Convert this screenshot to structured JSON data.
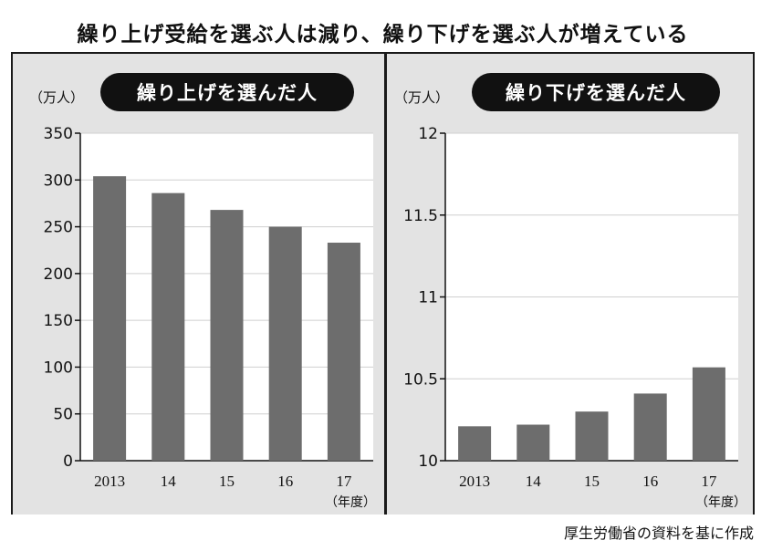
{
  "title": "繰り上げ受給を選ぶ人は減り、繰り下げを選ぶ人が増えている",
  "source": "厚生労働省の資料を基に作成",
  "colors": {
    "bar": "#6d6d6d",
    "panel_bg": "#e3e3e3",
    "plot_bg": "#ffffff",
    "grid": "#cfcfcf",
    "pill": "#111111"
  },
  "chart_data": [
    {
      "type": "bar",
      "title": "繰り上げを選んだ人",
      "unit_label": "（万人）",
      "xunit_label": "（年度）",
      "categories": [
        "2013",
        "14",
        "15",
        "16",
        "17"
      ],
      "series": [
        {
          "values": [
            304,
            286,
            268,
            250,
            233
          ]
        }
      ],
      "ylim": [
        0,
        350
      ],
      "yticks": [
        0,
        50,
        100,
        150,
        200,
        250,
        300,
        350
      ],
      "ytick_labels": [
        "0",
        "50",
        "100",
        "150",
        "200",
        "250",
        "300",
        "350"
      ],
      "grid": true
    },
    {
      "type": "bar",
      "title": "繰り下げを選んだ人",
      "unit_label": "（万人）",
      "xunit_label": "（年度）",
      "categories": [
        "2013",
        "14",
        "15",
        "16",
        "17"
      ],
      "series": [
        {
          "values": [
            10.21,
            10.22,
            10.3,
            10.41,
            10.57
          ]
        }
      ],
      "ylim": [
        10,
        12
      ],
      "yticks": [
        10,
        10.5,
        11,
        11.5,
        12
      ],
      "ytick_labels": [
        "10",
        "10.5",
        "11",
        "11.5",
        "12"
      ],
      "grid": true
    }
  ]
}
